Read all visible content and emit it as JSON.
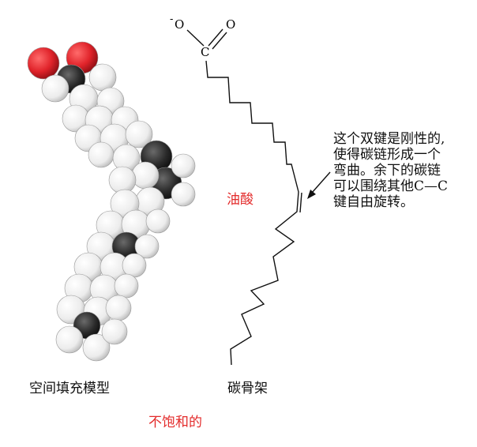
{
  "labels": {
    "model_name": "空间填充模型",
    "skeleton_name": "碳骨架",
    "molecule_name": "油酸",
    "caption": "不饱和的"
  },
  "skeleton_atoms": {
    "charge_oxygen": "O",
    "charge_sign": "-",
    "double_oxygen": "O",
    "carbon": "C"
  },
  "annotation": "这个双键是刚性的,\n使得碳链形成一个\n弯曲。余下的碳链\n可以围绕其他C—C\n键自由旋转。",
  "colors": {
    "accent_red": "#e32b2b",
    "oxygen": "#e0232a",
    "carbon": "#2a2a2a",
    "hydrogen": "#f4f4f4",
    "line": "#111111"
  }
}
